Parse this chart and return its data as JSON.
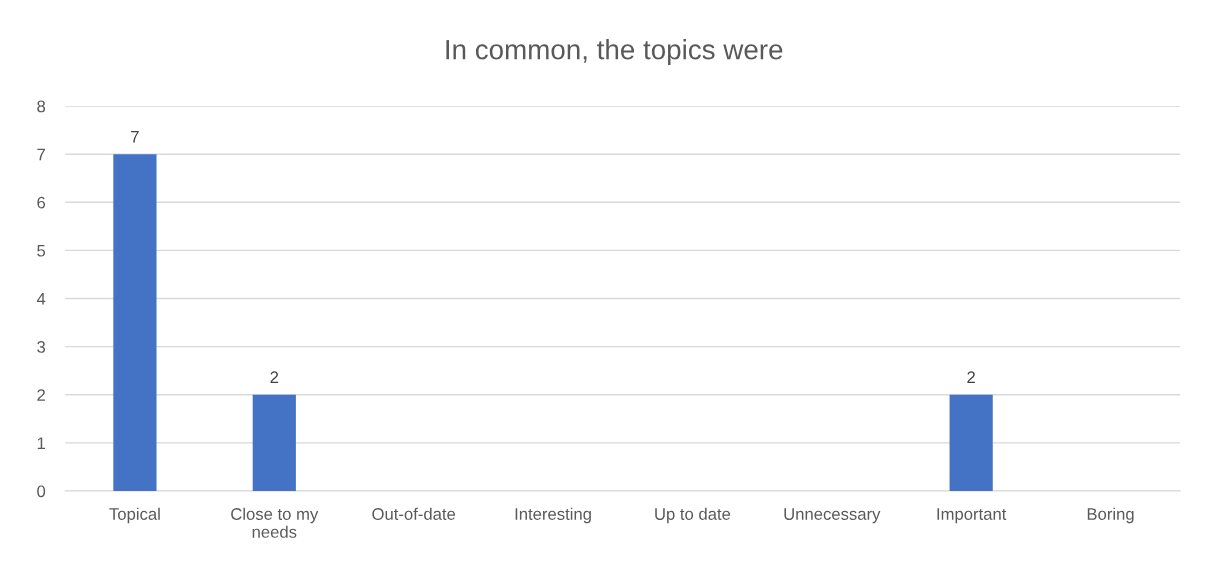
{
  "chart_data": {
    "type": "bar",
    "title": "In common, the topics were",
    "categories": [
      "Topical",
      "Close to my needs",
      "Out-of-date",
      "Interesting",
      "Up to date",
      "Unnecessary",
      "Important",
      "Boring"
    ],
    "values": [
      7,
      2,
      0,
      0,
      0,
      0,
      2,
      0
    ],
    "value_labels": [
      "7",
      "2",
      null,
      null,
      null,
      null,
      "2",
      null
    ],
    "color": "#4472c4",
    "ylim": [
      0,
      8
    ],
    "yticks": [
      0,
      1,
      2,
      3,
      4,
      5,
      6,
      7,
      8
    ],
    "grid": "y",
    "legend": false
  }
}
